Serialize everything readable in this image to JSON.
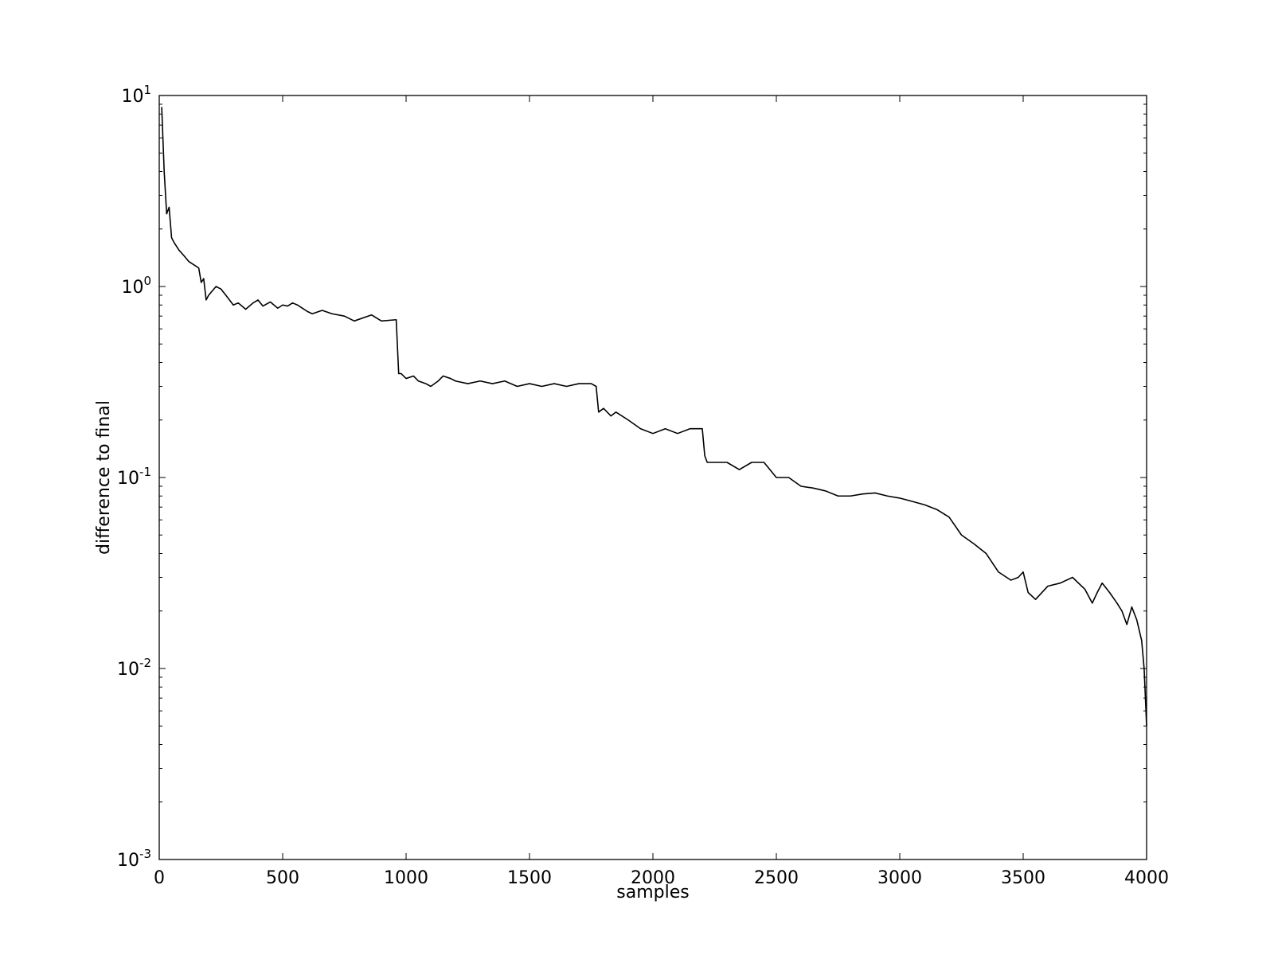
{
  "chart_data": {
    "type": "line",
    "title": "",
    "xlabel": "samples",
    "ylabel": "difference to final",
    "xlim": [
      0,
      4000
    ],
    "ylim": [
      0.001,
      10
    ],
    "yscale": "log",
    "grid": false,
    "legend": "none",
    "line_color": "#000000",
    "x_ticks": [
      0,
      500,
      1000,
      1500,
      2000,
      2500,
      3000,
      3500,
      4000
    ],
    "x_tick_labels": [
      "0",
      "500",
      "1000",
      "1500",
      "2000",
      "2500",
      "3000",
      "3500",
      "4000"
    ],
    "y_ticks": [
      {
        "value": 0.001,
        "base": "10",
        "exp": "-3"
      },
      {
        "value": 0.01,
        "base": "10",
        "exp": "-2"
      },
      {
        "value": 0.1,
        "base": "10",
        "exp": "-1"
      },
      {
        "value": 1,
        "base": "10",
        "exp": "0"
      },
      {
        "value": 10,
        "base": "10",
        "exp": "1"
      }
    ],
    "series": [
      {
        "x": [
          10,
          20,
          30,
          40,
          50,
          60,
          80,
          100,
          120,
          140,
          160,
          170,
          180,
          190,
          200,
          230,
          250,
          270,
          300,
          320,
          340,
          350,
          380,
          400,
          420,
          450,
          480,
          500,
          520,
          540,
          560,
          600,
          620,
          660,
          700,
          750,
          790,
          860,
          900,
          960,
          970,
          980,
          1000,
          1030,
          1050,
          1080,
          1100,
          1130,
          1150,
          1180,
          1200,
          1250,
          1300,
          1350,
          1400,
          1450,
          1500,
          1550,
          1600,
          1650,
          1700,
          1750,
          1770,
          1780,
          1800,
          1830,
          1850,
          1900,
          1950,
          2000,
          2050,
          2100,
          2150,
          2200,
          2210,
          2220,
          2250,
          2300,
          2350,
          2400,
          2450,
          2500,
          2550,
          2600,
          2650,
          2700,
          2750,
          2800,
          2850,
          2900,
          2950,
          3000,
          3050,
          3100,
          3150,
          3200,
          3250,
          3300,
          3350,
          3400,
          3450,
          3480,
          3500,
          3520,
          3550,
          3600,
          3650,
          3700,
          3750,
          3780,
          3800,
          3820,
          3850,
          3880,
          3900,
          3920,
          3940,
          3960,
          3980,
          3990,
          4000
        ],
        "values": [
          8.7,
          4.0,
          2.4,
          2.6,
          1.8,
          1.7,
          1.55,
          1.45,
          1.35,
          1.3,
          1.25,
          1.05,
          1.1,
          0.85,
          0.9,
          1.0,
          0.97,
          0.9,
          0.8,
          0.82,
          0.78,
          0.76,
          0.82,
          0.85,
          0.79,
          0.83,
          0.77,
          0.8,
          0.79,
          0.82,
          0.8,
          0.74,
          0.72,
          0.75,
          0.72,
          0.7,
          0.66,
          0.71,
          0.66,
          0.67,
          0.35,
          0.35,
          0.33,
          0.34,
          0.32,
          0.31,
          0.3,
          0.32,
          0.34,
          0.33,
          0.32,
          0.31,
          0.32,
          0.31,
          0.32,
          0.3,
          0.31,
          0.3,
          0.31,
          0.3,
          0.31,
          0.31,
          0.3,
          0.22,
          0.23,
          0.21,
          0.22,
          0.2,
          0.18,
          0.17,
          0.18,
          0.17,
          0.18,
          0.18,
          0.13,
          0.12,
          0.12,
          0.12,
          0.11,
          0.12,
          0.12,
          0.1,
          0.1,
          0.09,
          0.088,
          0.085,
          0.08,
          0.08,
          0.082,
          0.083,
          0.08,
          0.078,
          0.075,
          0.072,
          0.068,
          0.062,
          0.05,
          0.045,
          0.04,
          0.032,
          0.029,
          0.03,
          0.032,
          0.025,
          0.023,
          0.027,
          0.028,
          0.03,
          0.026,
          0.022,
          0.025,
          0.028,
          0.025,
          0.022,
          0.02,
          0.017,
          0.021,
          0.018,
          0.014,
          0.01,
          0.005
        ]
      }
    ]
  }
}
